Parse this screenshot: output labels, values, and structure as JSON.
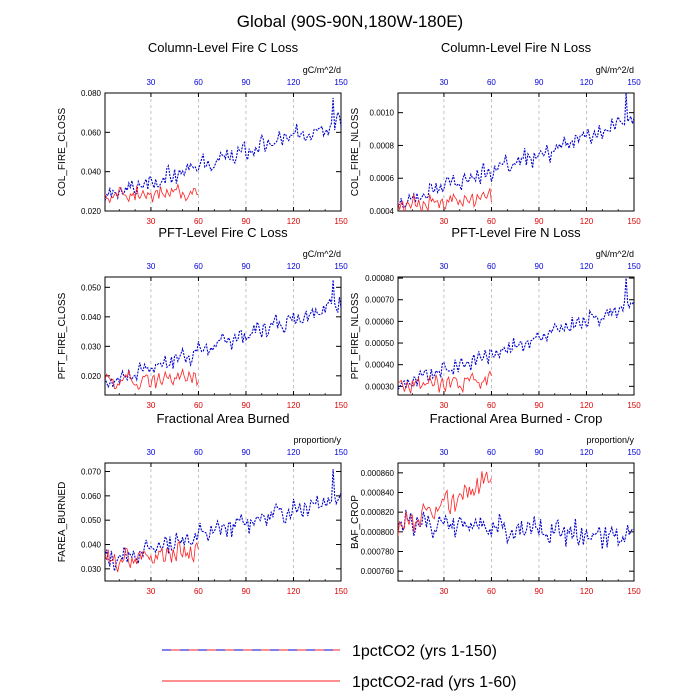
{
  "figure": {
    "title": "Global (90S-90N,180W-180E)",
    "colors": {
      "series_1pct": "#0000cc",
      "series_rad": "#ff2222",
      "grid": "#9a9a9a",
      "top_tick": "#0000dd",
      "bottom_tick": "#dd0000"
    }
  },
  "legend": {
    "items": [
      {
        "label": "1pctCO2 (yrs 1-150)",
        "style": "dashed"
      },
      {
        "label": "1pctCO2-rad (yrs 1-60)",
        "style": "solid"
      }
    ]
  },
  "chart_data": [
    {
      "type": "line",
      "title": "Column-Level Fire C Loss",
      "ylabel": "COL_FIRE_CLOSS",
      "units": "gC/m^2/d",
      "xlim": [
        1,
        150
      ],
      "ylim": [
        0.02,
        0.08
      ],
      "yticks": [
        "0.020",
        "0.040",
        "0.060",
        "0.080"
      ],
      "xticks": [
        30,
        60,
        90,
        120,
        150
      ],
      "series": [
        {
          "name": "1pctCO2 (yrs 1-150)",
          "start": 0.027,
          "end": 0.066,
          "amp": 0.0045,
          "n": 150,
          "spike": 0.0775,
          "seed": 3
        },
        {
          "name": "1pctCO2-rad (yrs 1-60)",
          "start": 0.028,
          "end": 0.029,
          "amp": 0.0045,
          "n": 60,
          "seed": 11
        }
      ]
    },
    {
      "type": "line",
      "title": "Column-Level Fire N Loss",
      "ylabel": "COL_FIRE_NLOSS",
      "units": "gN/m^2/d",
      "xlim": [
        1,
        150
      ],
      "ylim": [
        0.0004,
        0.00112
      ],
      "yticks": [
        "0.0004",
        "0.0006",
        "0.0008",
        "0.0010"
      ],
      "xticks": [
        30,
        60,
        90,
        120,
        150
      ],
      "series": [
        {
          "name": "1pctCO2 (yrs 1-150)",
          "start": 0.00044,
          "end": 0.00096,
          "amp": 6e-05,
          "n": 150,
          "spike": 0.00112,
          "seed": 5
        },
        {
          "name": "1pctCO2-rad (yrs 1-60)",
          "start": 0.00044,
          "end": 0.00048,
          "amp": 5e-05,
          "n": 60,
          "seed": 17
        }
      ]
    },
    {
      "type": "line",
      "title": "PFT-Level Fire C Loss",
      "ylabel": "PFT_FIRE_CLOSS",
      "units": "gC/m^2/d",
      "xlim": [
        1,
        150
      ],
      "ylim": [
        0.0135,
        0.0535
      ],
      "yticks": [
        "0.020",
        "0.030",
        "0.040",
        "0.050"
      ],
      "xticks": [
        30,
        60,
        90,
        120,
        150
      ],
      "series": [
        {
          "name": "1pctCO2 (yrs 1-150)",
          "start": 0.0175,
          "end": 0.045,
          "amp": 0.003,
          "n": 150,
          "spike": 0.0525,
          "seed": 7
        },
        {
          "name": "1pctCO2-rad (yrs 1-60)",
          "start": 0.018,
          "end": 0.0195,
          "amp": 0.003,
          "n": 60,
          "seed": 19
        }
      ]
    },
    {
      "type": "line",
      "title": "PFT-Level Fire N Loss",
      "ylabel": "PFT_FIRE_NLOSS",
      "units": "gN/m^2/d",
      "xlim": [
        1,
        150
      ],
      "ylim": [
        0.00026,
        0.000805
      ],
      "yticks": [
        "0.00030",
        "0.00040",
        "0.00050",
        "0.00060",
        "0.00070",
        "0.00080"
      ],
      "xticks": [
        30,
        60,
        90,
        120,
        150
      ],
      "series": [
        {
          "name": "1pctCO2 (yrs 1-150)",
          "start": 0.0003,
          "end": 0.00068,
          "amp": 3.5e-05,
          "n": 150,
          "spike": 0.0008,
          "seed": 9
        },
        {
          "name": "1pctCO2-rad (yrs 1-60)",
          "start": 0.0003,
          "end": 0.00033,
          "amp": 4e-05,
          "n": 60,
          "seed": 23
        }
      ]
    },
    {
      "type": "line",
      "title": "Fractional Area Burned",
      "ylabel": "FAREA_BURNED",
      "units": "proportion/y",
      "xlim": [
        1,
        150
      ],
      "ylim": [
        0.025,
        0.0735
      ],
      "yticks": [
        "0.030",
        "0.040",
        "0.050",
        "0.060",
        "0.070"
      ],
      "xticks": [
        30,
        60,
        90,
        120,
        150
      ],
      "series": [
        {
          "name": "1pctCO2 (yrs 1-150)",
          "start": 0.033,
          "end": 0.06,
          "amp": 0.004,
          "n": 150,
          "spike": 0.071,
          "seed": 13
        },
        {
          "name": "1pctCO2-rad (yrs 1-60)",
          "start": 0.033,
          "end": 0.038,
          "amp": 0.004,
          "n": 60,
          "seed": 29
        }
      ]
    },
    {
      "type": "line",
      "title": "Fractional Area Burned - Crop",
      "ylabel": "BAF_CROP",
      "units": "proportion/y",
      "xlim": [
        1,
        150
      ],
      "ylim": [
        0.00075,
        0.00087
      ],
      "yticks": [
        "0.000760",
        "0.000780",
        "0.000800",
        "0.000820",
        "0.000840",
        "0.000860"
      ],
      "xticks": [
        30,
        60,
        90,
        120,
        150
      ],
      "series": [
        {
          "name": "1pctCO2 (yrs 1-150)",
          "start": 0.00081,
          "end": 0.000795,
          "amp": 1.2e-05,
          "n": 150,
          "seed": 31
        },
        {
          "name": "1pctCO2-rad (yrs 1-60)",
          "start": 0.0008,
          "end": 0.000855,
          "amp": 1.2e-05,
          "n": 60,
          "seed": 37
        }
      ]
    }
  ]
}
